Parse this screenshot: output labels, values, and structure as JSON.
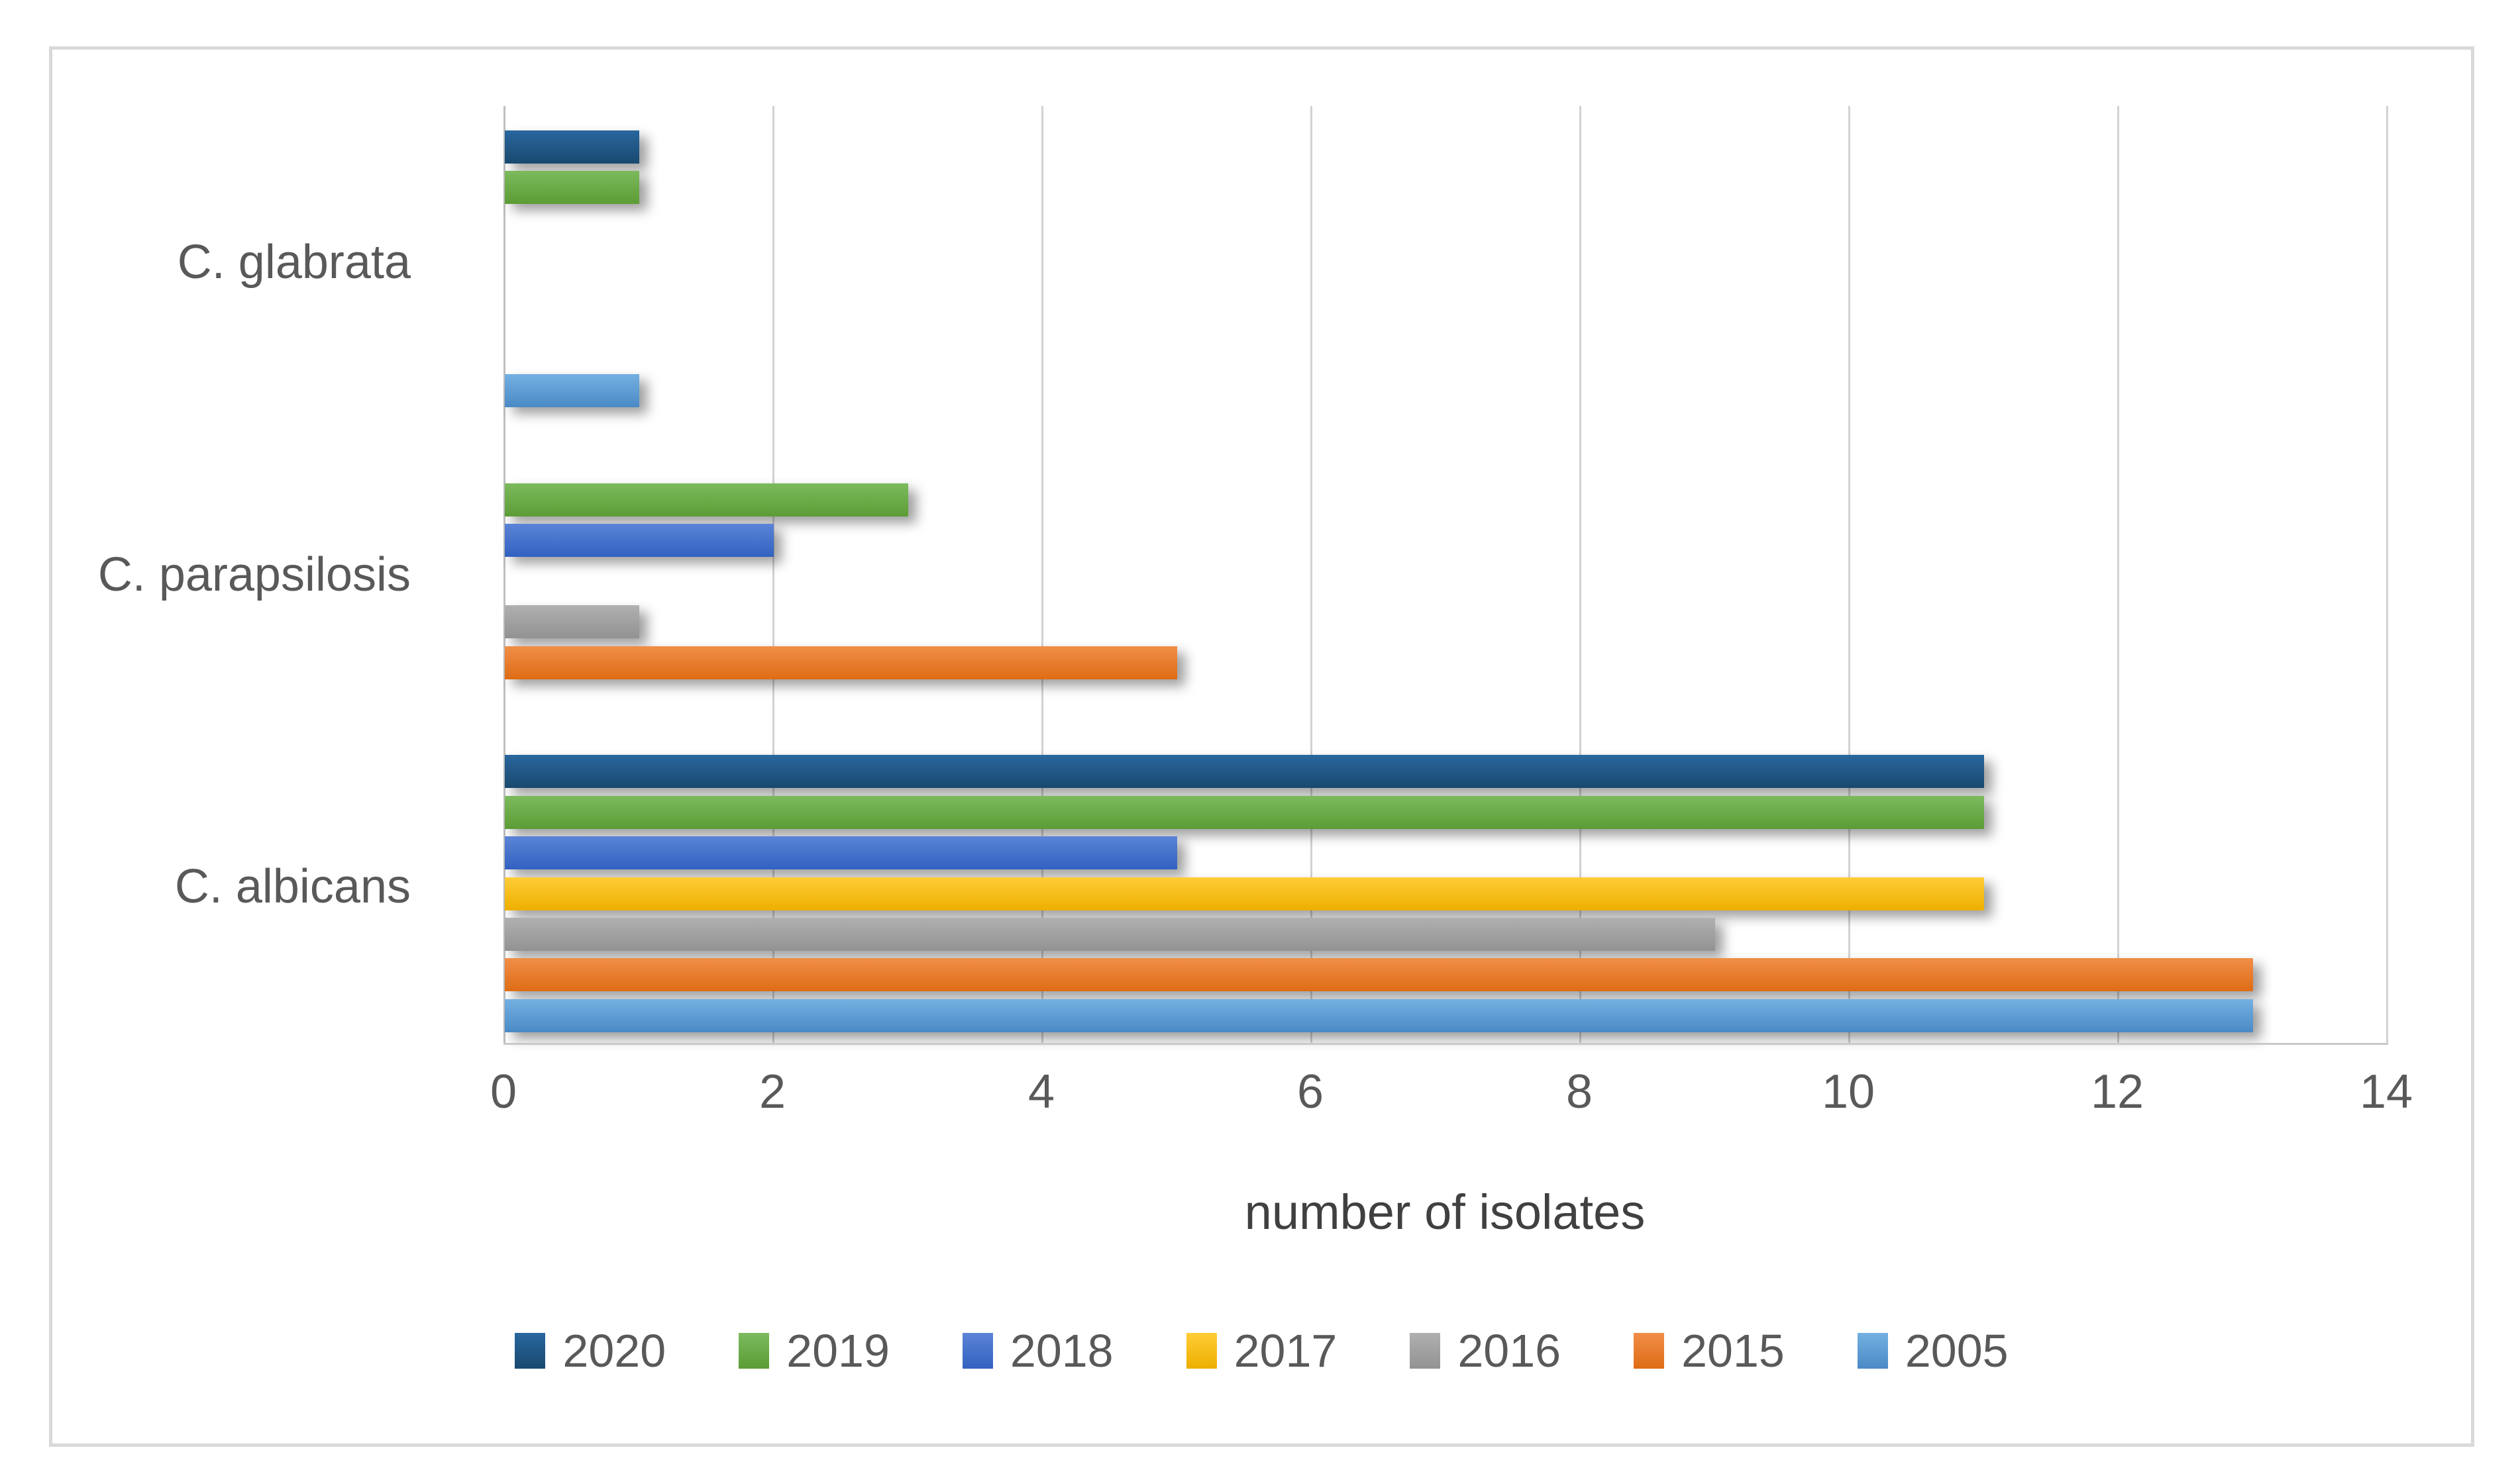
{
  "chart_data": {
    "type": "bar",
    "orientation": "horizontal",
    "title": "",
    "xlabel": "number of isolates",
    "ylabel": "",
    "xlim": [
      0,
      14
    ],
    "xticks": [
      0,
      2,
      4,
      6,
      8,
      10,
      12,
      14
    ],
    "grid": true,
    "legend_position": "bottom",
    "categories": [
      "C. glabrata",
      "C. parapsilosis",
      "C. albicans"
    ],
    "series": [
      {
        "name": "2020",
        "color": "#1F4E79",
        "gradient": [
          "#29679E",
          "#19496F"
        ],
        "values": [
          1,
          0,
          11
        ]
      },
      {
        "name": "2019",
        "color": "#70AD47",
        "gradient": [
          "#7CBA5E",
          "#5C9C35"
        ],
        "values": [
          1,
          3,
          11
        ]
      },
      {
        "name": "2018",
        "color": "#4472C4",
        "gradient": [
          "#5B84D7",
          "#3161C0"
        ],
        "values": [
          0,
          2,
          5
        ]
      },
      {
        "name": "2017",
        "color": "#FFC000",
        "gradient": [
          "#FFCD37",
          "#EDAF00"
        ],
        "values": [
          0,
          0,
          11
        ]
      },
      {
        "name": "2016",
        "color": "#A5A5A5",
        "gradient": [
          "#B0B0B0",
          "#929292"
        ],
        "values": [
          0,
          1,
          9
        ]
      },
      {
        "name": "2015",
        "color": "#ED7D31",
        "gradient": [
          "#F18E48",
          "#DE6C15"
        ],
        "values": [
          0,
          5,
          13
        ]
      },
      {
        "name": "2005",
        "color": "#5B9BD5",
        "gradient": [
          "#74B0E1",
          "#4A8AC6"
        ],
        "values": [
          1,
          0,
          13
        ]
      }
    ]
  },
  "style_colors": {
    "chart_border": "#d9d9d9",
    "gridline": "#d2d2d2",
    "axis_line": "#bfbfbf",
    "tick_text": "#595959",
    "axis_title_text": "#404040",
    "legend_text": "#595959",
    "background": "#ffffff"
  }
}
